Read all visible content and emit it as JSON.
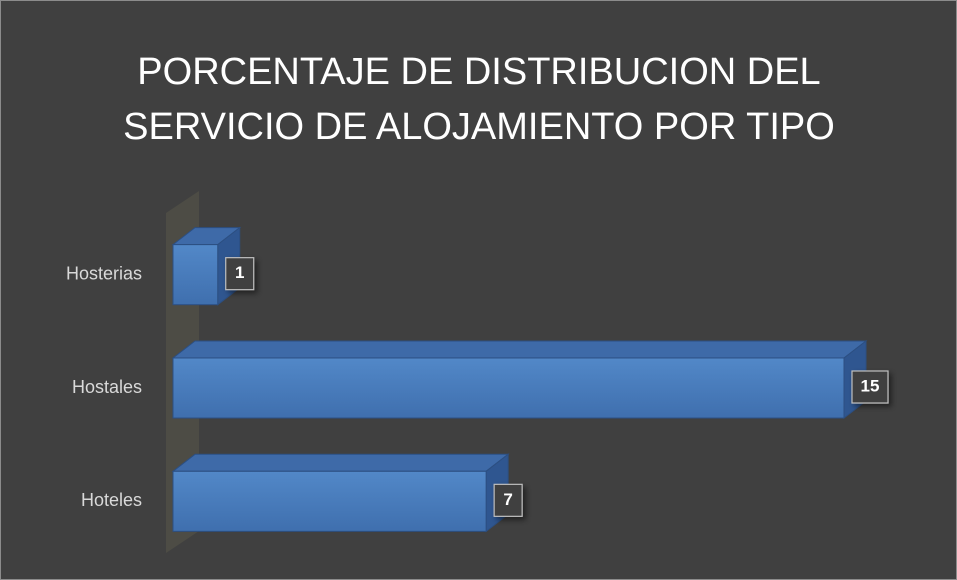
{
  "chart_data": {
    "type": "bar",
    "orientation": "horizontal",
    "title": "PORCENTAJE DE DISTRIBUCION DEL SERVICIO DE ALOJAMIENTO POR TIPO",
    "categories": [
      "Hosterias",
      "Hostales",
      "Hoteles"
    ],
    "values": [
      1,
      15,
      7
    ],
    "color": "#4a7bbf"
  }
}
